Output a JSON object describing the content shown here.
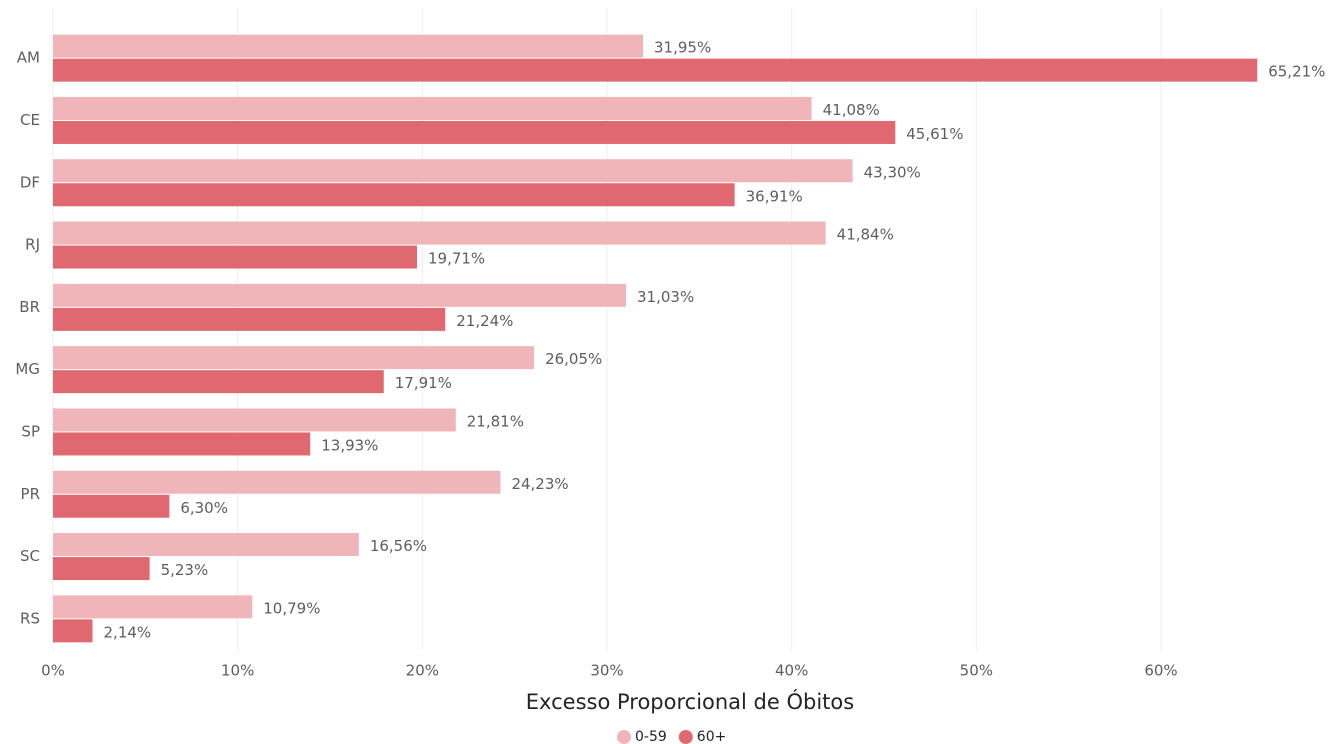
{
  "chart_data": {
    "type": "hbar",
    "x_label": "Excesso Proporcional de Óbitos",
    "categories": [
      "AM",
      "CE",
      "DF",
      "RJ",
      "BR",
      "MG",
      "SP",
      "PR",
      "SC",
      "RS"
    ],
    "series": [
      {
        "name": "0-59",
        "color": "#f0b5b8",
        "values": [
          31.95,
          41.08,
          43.3,
          41.84,
          31.03,
          26.05,
          21.81,
          24.23,
          16.56,
          10.79
        ],
        "value_labels": [
          "31,95%",
          "41,08%",
          "43,30%",
          "41,84%",
          "31,03%",
          "26,05%",
          "21,81%",
          "24,23%",
          "16,56%",
          "10,79%"
        ]
      },
      {
        "name": "60+",
        "color": "#e06870",
        "values": [
          65.21,
          45.61,
          36.91,
          19.71,
          21.24,
          17.91,
          13.93,
          6.3,
          5.23,
          2.14
        ],
        "value_labels": [
          "65,21%",
          "45,61%",
          "36,91%",
          "19,71%",
          "21,24%",
          "17,91%",
          "13,93%",
          "6,30%",
          "5,23%",
          "2,14%"
        ]
      }
    ],
    "xlim": [
      0,
      70
    ],
    "xticks": [
      {
        "value": 0,
        "label": "0%"
      },
      {
        "value": 10,
        "label": "10%"
      },
      {
        "value": 20,
        "label": "20%"
      },
      {
        "value": 30,
        "label": "30%"
      },
      {
        "value": 40,
        "label": "40%"
      },
      {
        "value": 50,
        "label": "50%"
      },
      {
        "value": 60,
        "label": "60%"
      }
    ],
    "grid": true,
    "legend": "bottom"
  }
}
